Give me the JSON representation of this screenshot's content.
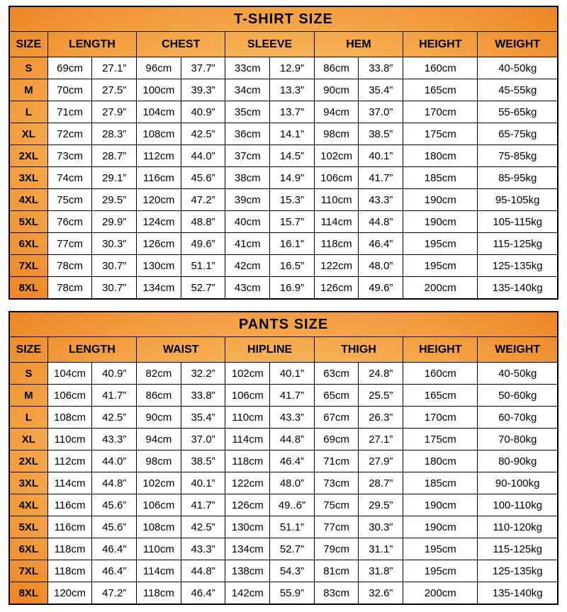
{
  "colors": {
    "border": "#000000",
    "cell_background": "#ffffff",
    "accent_orange_dark": "#ec8525",
    "accent_orange_mid": "#f6ab4e",
    "accent_orange_light": "#fdd28d",
    "text": "#000000"
  },
  "chart_data": [
    {
      "type": "table",
      "title": "T-SHIRT SIZE",
      "column_groups": [
        {
          "label": "SIZE",
          "span": 1
        },
        {
          "label": "LENGTH",
          "span": 2
        },
        {
          "label": "CHEST",
          "span": 2
        },
        {
          "label": "SLEEVE",
          "span": 2
        },
        {
          "label": "HEM",
          "span": 2
        },
        {
          "label": "HEIGHT",
          "span": 1
        },
        {
          "label": "WEIGHT",
          "span": 1
        }
      ],
      "rows": [
        [
          "S",
          "69cm",
          "27.1”",
          "96cm",
          "37.7”",
          "33cm",
          "12.9”",
          "86cm",
          "33.8”",
          "160cm",
          "40-50kg"
        ],
        [
          "M",
          "70cm",
          "27.5”",
          "100cm",
          "39.3”",
          "34cm",
          "13.3”",
          "90cm",
          "35.4”",
          "165cm",
          "45-55kg"
        ],
        [
          "L",
          "71cm",
          "27.9”",
          "104cm",
          "40.9”",
          "35cm",
          "13.7”",
          "94cm",
          "37.0”",
          "170cm",
          "55-65kg"
        ],
        [
          "XL",
          "72cm",
          "28.3”",
          "108cm",
          "42.5”",
          "36cm",
          "14.1”",
          "98cm",
          "38.5”",
          "175cm",
          "65-75kg"
        ],
        [
          "2XL",
          "73cm",
          "28.7”",
          "112cm",
          "44.0”",
          "37cm",
          "14.5”",
          "102cm",
          "40.1”",
          "180cm",
          "75-85kg"
        ],
        [
          "3XL",
          "74cm",
          "29.1”",
          "116cm",
          "45.6”",
          "38cm",
          "14.9”",
          "106cm",
          "41.7”",
          "185cm",
          "85-95kg"
        ],
        [
          "4XL",
          "75cm",
          "29.5”",
          "120cm",
          "47.2”",
          "39cm",
          "15.3”",
          "110cm",
          "43.3”",
          "190cm",
          "95-105kg"
        ],
        [
          "5XL",
          "76cm",
          "29.9”",
          "124cm",
          "48.8”",
          "40cm",
          "15.7”",
          "114cm",
          "44.8”",
          "190cm",
          "105-115kg"
        ],
        [
          "6XL",
          "77cm",
          "30.3”",
          "126cm",
          "49.6”",
          "41cm",
          "16.1”",
          "118cm",
          "46.4”",
          "195cm",
          "115-125kg"
        ],
        [
          "7XL",
          "78cm",
          "30.7”",
          "130cm",
          "51.1”",
          "42cm",
          "16.5”",
          "122cm",
          "48.0”",
          "195cm",
          "125-135kg"
        ],
        [
          "8XL",
          "78cm",
          "30.7”",
          "134cm",
          "52.7”",
          "43cm",
          "16.9”",
          "126cm",
          "49.6”",
          "200cm",
          "135-140kg"
        ]
      ]
    },
    {
      "type": "table",
      "title": "PANTS SIZE",
      "column_groups": [
        {
          "label": "SIZE",
          "span": 1
        },
        {
          "label": "LENGTH",
          "span": 2
        },
        {
          "label": "WAIST",
          "span": 2
        },
        {
          "label": "HIPLINE",
          "span": 2
        },
        {
          "label": "THIGH",
          "span": 2
        },
        {
          "label": "HEIGHT",
          "span": 1
        },
        {
          "label": "WEIGHT",
          "span": 1
        }
      ],
      "rows": [
        [
          "S",
          "104cm",
          "40.9”",
          "82cm",
          "32.2”",
          "102cm",
          "40.1”",
          "63cm",
          "24.8”",
          "160cm",
          "40-50kg"
        ],
        [
          "M",
          "106cm",
          "41.7”",
          "86cm",
          "33.8”",
          "106cm",
          "41.7”",
          "65cm",
          "25.5”",
          "165cm",
          "50-60kg"
        ],
        [
          "L",
          "108cm",
          "42.5”",
          "90cm",
          "35.4”",
          "110cm",
          "43.3”",
          "67cm",
          "26.3”",
          "170cm",
          "60-70kg"
        ],
        [
          "XL",
          "110cm",
          "43.3”",
          "94cm",
          "37.0”",
          "114cm",
          "44.8”",
          "69cm",
          "27.1”",
          "175cm",
          "70-80kg"
        ],
        [
          "2XL",
          "112cm",
          "44.0”",
          "98cm",
          "38.5”",
          "118cm",
          "46.4”",
          "71cm",
          "27.9”",
          "180cm",
          "80-90kg"
        ],
        [
          "3XL",
          "114cm",
          "44.8”",
          "102cm",
          "40.1”",
          "122cm",
          "48.0”",
          "73cm",
          "28.7”",
          "185cm",
          "90-100kg"
        ],
        [
          "4XL",
          "116cm",
          "45.6”",
          "106cm",
          "41.7”",
          "126cm",
          "49..6”",
          "75cm",
          "29.5”",
          "190cm",
          "100-110kg"
        ],
        [
          "5XL",
          "116cm",
          "45.6”",
          "108cm",
          "42.5”",
          "130cm",
          "51.1”",
          "77cm",
          "30.3”",
          "190cm",
          "110-120kg"
        ],
        [
          "6XL",
          "118cm",
          "46.4”",
          "110cm",
          "43.3”",
          "134cm",
          "52.7”",
          "79cm",
          "31.1”",
          "195cm",
          "115-125kg"
        ],
        [
          "7XL",
          "118cm",
          "46.4”",
          "114cm",
          "44.8”",
          "138cm",
          "54.3”",
          "81cm",
          "31.8”",
          "195cm",
          "125-135kg"
        ],
        [
          "8XL",
          "120cm",
          "47.2”",
          "118cm",
          "46.4”",
          "142cm",
          "55.9”",
          "83cm",
          "32.6”",
          "200cm",
          "135-140kg"
        ]
      ]
    }
  ],
  "layout_hints": {
    "column_widths_percent": [
      "7",
      "8.1",
      "8.1",
      "8.1",
      "8.1",
      "8.1",
      "8.1",
      "8.1",
      "8.1",
      "13.6",
      "14.6"
    ]
  }
}
